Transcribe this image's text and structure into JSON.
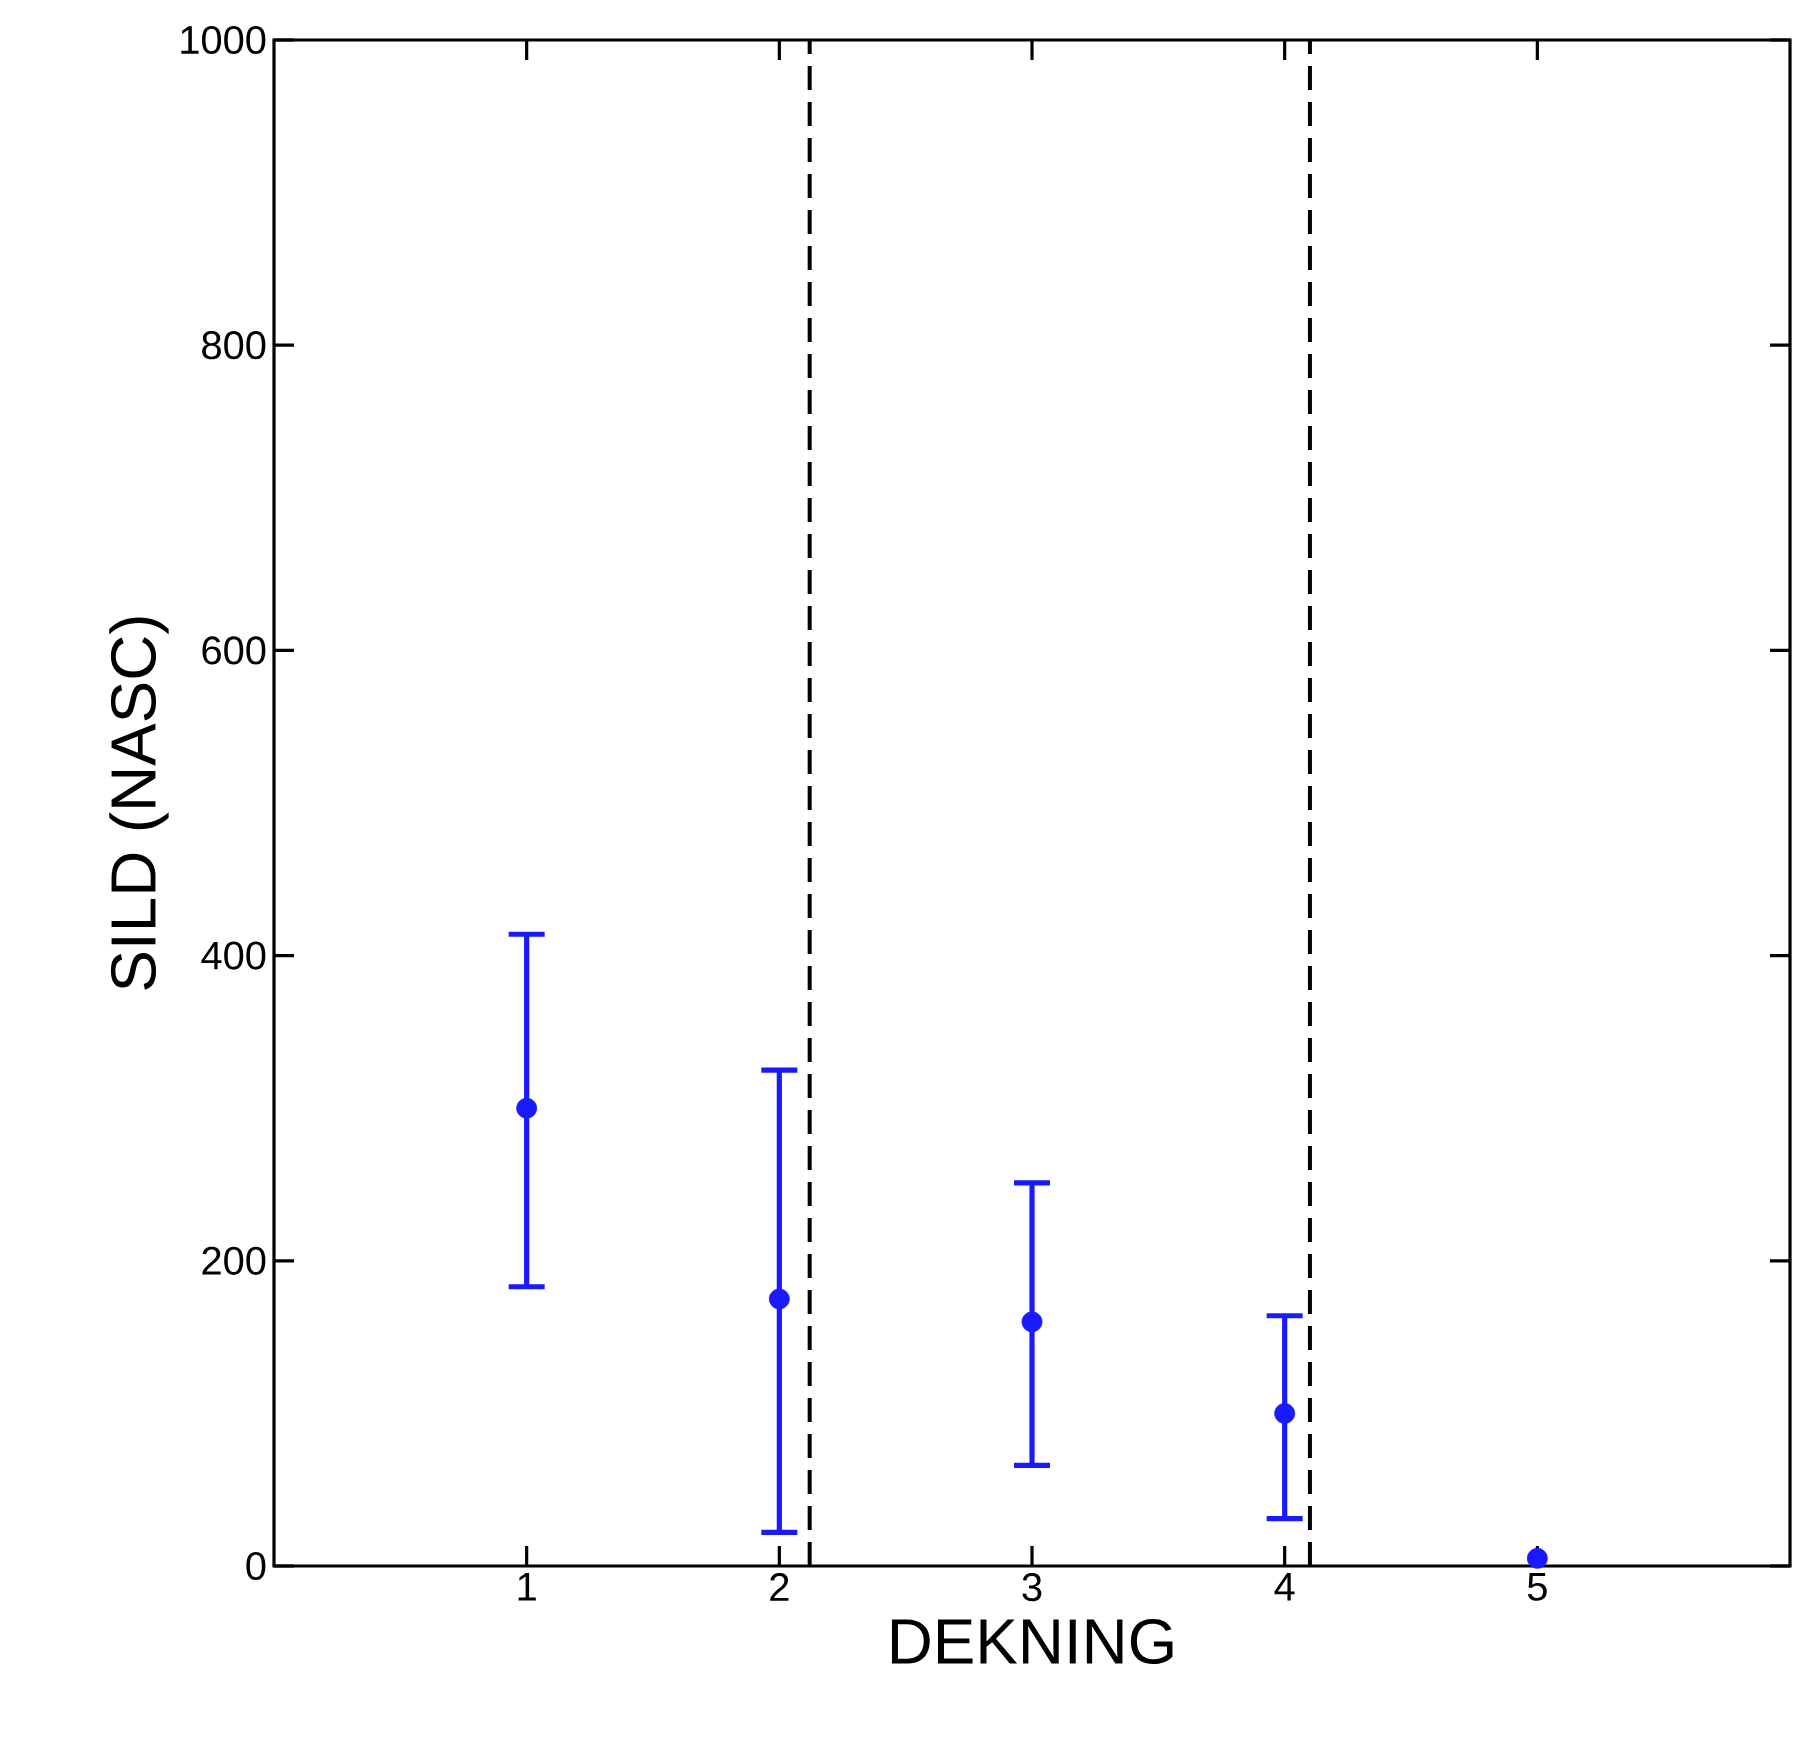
{
  "chart_data": {
    "type": "scatter",
    "xlabel": "DEKNING",
    "ylabel": "SILD (NASC)",
    "x": [
      1,
      2,
      3,
      4,
      5
    ],
    "series": [
      {
        "color": "#1a1aff",
        "values": [
          300,
          175,
          160,
          100,
          5
        ],
        "errors": [
          [
            183,
            414
          ],
          [
            22,
            325
          ],
          [
            66,
            251
          ],
          [
            31,
            164
          ],
          null
        ]
      }
    ],
    "xlim": [
      0,
      6
    ],
    "ylim": [
      0,
      1000
    ],
    "xticks": [
      1,
      2,
      3,
      4,
      5
    ],
    "yticks": [
      0,
      200,
      400,
      600,
      800,
      1000
    ],
    "ref_lines": [
      {
        "axis": "x",
        "value": 2.12,
        "line_style": "dashed",
        "color": "#000000"
      },
      {
        "axis": "x",
        "value": 4.1,
        "line_style": "dashed",
        "color": "#000000"
      }
    ],
    "marker": "circle",
    "grid": false
  }
}
